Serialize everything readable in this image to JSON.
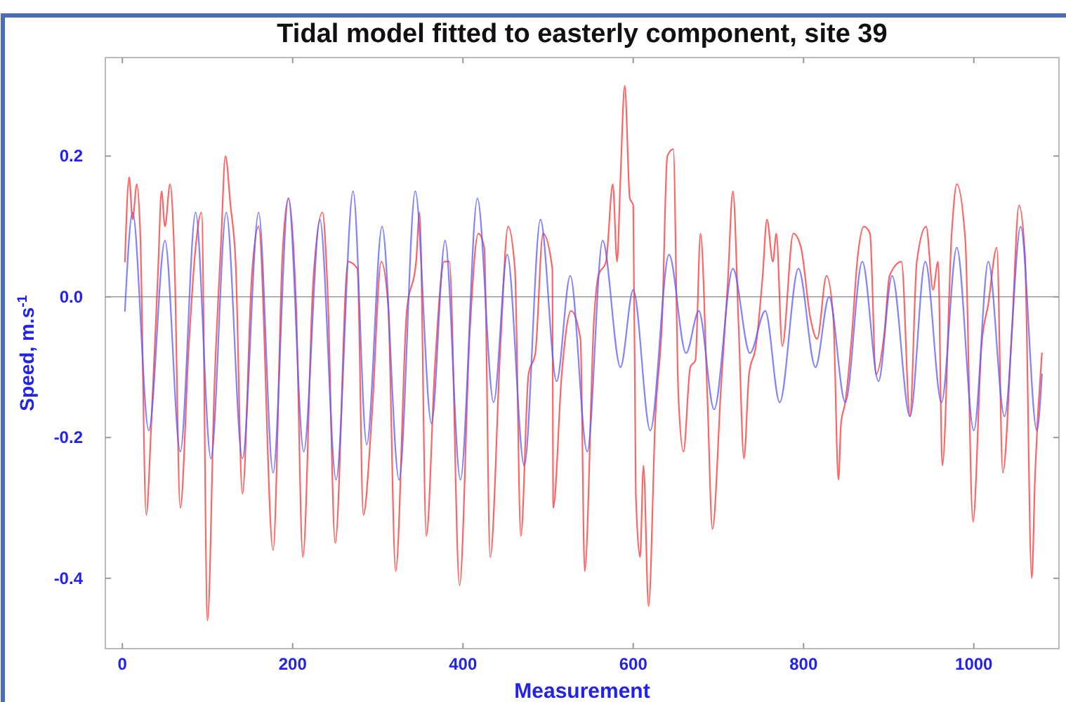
{
  "chart_data": {
    "type": "line",
    "title": "Tidal model fitted to easterly component, site 39",
    "xlabel": "Measurement",
    "ylabel": "Speed, m.s$^{-1}$",
    "xlim": [
      -20,
      1100
    ],
    "ylim": [
      -0.5,
      0.34
    ],
    "xticks": [
      0,
      200,
      400,
      600,
      800,
      1000
    ],
    "yticks": [
      {
        "value": -0.4,
        "label": "-0.4"
      },
      {
        "value": -0.2,
        "label": "-0.2"
      },
      {
        "value": 0,
        "label": "0.0"
      },
      {
        "value": 0.2,
        "label": "0.2"
      }
    ],
    "grid": false,
    "marker": "none",
    "line_style": "solid",
    "ref_lines": [
      {
        "axis": "y",
        "value": 0,
        "color": "#999999"
      }
    ],
    "series": [
      {
        "color": "#ff3030",
        "x": [
          3,
          8,
          12,
          17,
          21,
          28,
          34,
          42,
          46,
          50,
          56,
          61,
          68,
          78,
          86,
          93,
          100,
          108,
          116,
          121,
          127,
          133,
          141,
          152,
          160,
          177,
          188,
          195,
          204,
          212,
          224,
          235,
          241,
          250,
          265,
          276,
          283,
          293,
          304,
          312,
          321,
          334,
          345,
          349,
          357,
          367,
          378,
          384,
          396,
          408,
          418,
          425,
          432,
          444,
          453,
          461,
          468,
          477,
          485,
          494,
          505,
          506,
          516,
          527,
          538,
          543,
          554,
          559,
          568,
          576,
          581,
          585,
          590,
          596,
          600,
          603,
          608,
          612,
          618,
          626,
          634,
          640,
          647,
          653,
          659,
          667,
          673,
          679,
          687,
          693,
          703,
          711,
          717,
          724,
          730,
          736,
          744,
          752,
          757,
          764,
          768,
          775,
          788,
          797,
          808,
          816,
          827,
          835,
          841,
          844,
          849,
          857,
          863,
          871,
          878,
          885,
          895,
          901,
          915,
          925,
          933,
          944,
          952,
          958,
          963,
          974,
          980,
          990,
          999,
          1009,
          1017,
          1027,
          1034,
          1045,
          1053,
          1060,
          1068,
          1072,
          1080
        ],
        "values": [
          0.05,
          0.17,
          0.11,
          0.16,
          0.09,
          -0.31,
          -0.18,
          0.04,
          0.15,
          0.1,
          0.16,
          0.06,
          -0.3,
          -0.07,
          0.07,
          0.12,
          -0.46,
          -0.13,
          0.08,
          0.2,
          0.13,
          0.05,
          -0.28,
          0.03,
          0.1,
          -0.36,
          0.06,
          0.14,
          -0.01,
          -0.37,
          0.02,
          0.12,
          0.01,
          -0.35,
          0.05,
          0.04,
          -0.31,
          -0.17,
          0.05,
          -0.01,
          -0.39,
          -0.02,
          0.05,
          0.12,
          -0.34,
          -0.1,
          0.05,
          0.05,
          -0.41,
          -0.05,
          0.09,
          0.07,
          -0.37,
          -0.07,
          0.1,
          0.04,
          -0.34,
          -0.11,
          -0.08,
          0.09,
          0.04,
          -0.3,
          -0.11,
          -0.02,
          -0.06,
          -0.39,
          -0.03,
          0.03,
          0.05,
          0.16,
          0.05,
          0.17,
          0.3,
          0.14,
          0.13,
          -0.28,
          -0.37,
          -0.24,
          -0.44,
          -0.17,
          -0.03,
          0.2,
          0.21,
          -0.14,
          -0.22,
          -0.1,
          -0.09,
          0.09,
          -0.14,
          -0.33,
          -0.13,
          0.02,
          0.15,
          -0.05,
          -0.23,
          -0.11,
          -0.07,
          0.03,
          0.11,
          0.05,
          0.09,
          -0.07,
          0.09,
          0.07,
          -0.03,
          -0.06,
          0.03,
          -0.03,
          -0.26,
          -0.18,
          -0.15,
          -0.05,
          0.05,
          0.1,
          0.09,
          -0.11,
          -0.05,
          0.03,
          0.05,
          -0.17,
          0.05,
          0.1,
          0.01,
          0.05,
          -0.24,
          0.09,
          0.16,
          0.08,
          -0.32,
          -0.07,
          -0.01,
          0.07,
          -0.25,
          -0.04,
          0.13,
          0.06,
          -0.4,
          -0.25,
          -0.08
        ]
      },
      {
        "color": "#5a5aff",
        "x": [
          3,
          12,
          31,
          50,
          68,
          86,
          104,
          122,
          141,
          160,
          177,
          195,
          213,
          232,
          251,
          271,
          287,
          305,
          325,
          344,
          363,
          379,
          397,
          417,
          436,
          452,
          472,
          491,
          510,
          526,
          546,
          564,
          585,
          600,
          620,
          642,
          662,
          677,
          695,
          717,
          737,
          755,
          772,
          794,
          814,
          830,
          849,
          869,
          888,
          904,
          925,
          943,
          962,
          980,
          1000,
          1017,
          1036,
          1055,
          1074,
          1080
        ],
        "values": [
          -0.02,
          0.12,
          -0.19,
          0.08,
          -0.22,
          0.12,
          -0.23,
          0.12,
          -0.23,
          0.12,
          -0.25,
          0.14,
          -0.22,
          0.11,
          -0.26,
          0.15,
          -0.21,
          0.1,
          -0.26,
          0.15,
          -0.18,
          0.08,
          -0.26,
          0.14,
          -0.15,
          0.06,
          -0.24,
          0.11,
          -0.12,
          0.03,
          -0.22,
          0.08,
          -0.1,
          0.01,
          -0.19,
          0.06,
          -0.08,
          -0.02,
          -0.16,
          0.04,
          -0.08,
          -0.02,
          -0.15,
          0.04,
          -0.1,
          0,
          -0.15,
          0.05,
          -0.12,
          0.03,
          -0.17,
          0.05,
          -0.15,
          0.07,
          -0.19,
          0.05,
          -0.17,
          0.1,
          -0.19,
          -0.11
        ]
      }
    ]
  }
}
